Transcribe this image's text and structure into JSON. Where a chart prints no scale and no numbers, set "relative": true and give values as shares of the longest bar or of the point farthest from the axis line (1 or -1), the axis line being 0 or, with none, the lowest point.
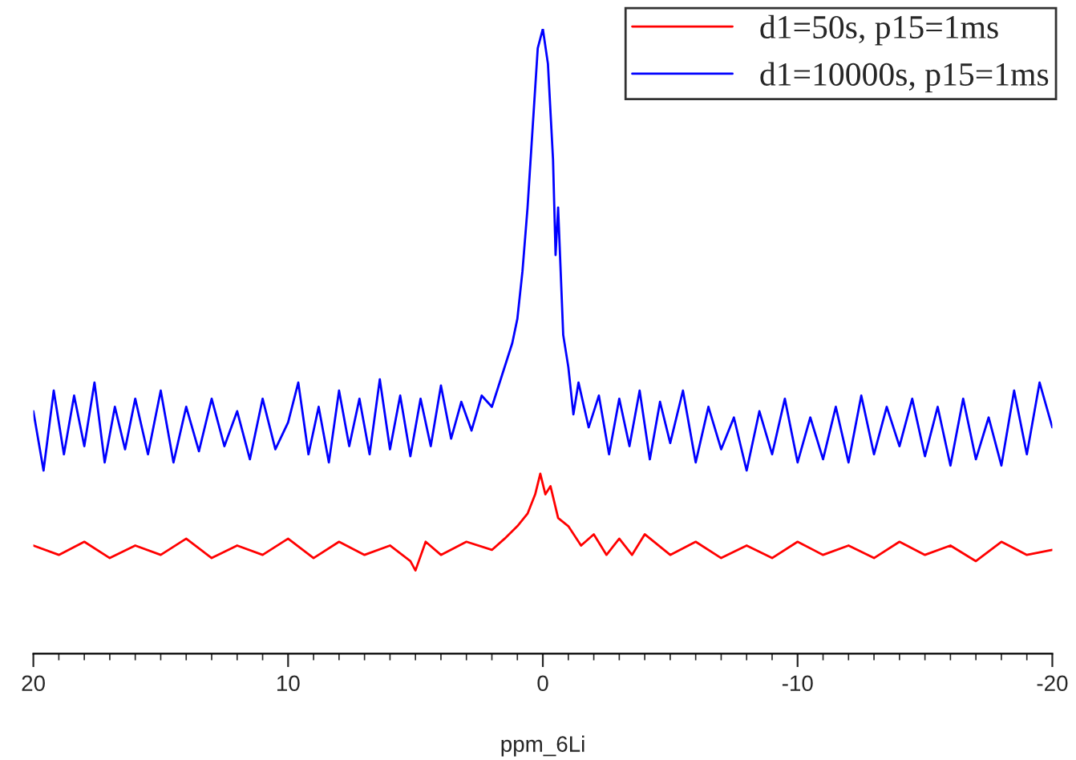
{
  "chart_data": {
    "type": "line",
    "xlabel": "ppm_6Li",
    "relative": true,
    "xlim": [
      20,
      -20
    ],
    "xticks": [
      20,
      10,
      0,
      -10,
      -20
    ],
    "legend": "top right",
    "grid": false,
    "series": [
      {
        "name": "d1=50s, p15=1ms",
        "color": "#ff0000",
        "x": [
          20,
          19,
          18,
          17,
          16,
          15,
          14,
          13,
          12,
          11,
          10,
          9,
          8,
          7,
          6,
          5.2,
          5,
          4.6,
          4,
          3,
          2,
          1.5,
          1,
          0.6,
          0.3,
          0.1,
          -0.1,
          -0.3,
          -0.6,
          -1,
          -1.5,
          -2,
          -2.5,
          -3,
          -3.5,
          -4,
          -5,
          -6,
          -7,
          -8,
          -9,
          -10,
          -11,
          -12,
          -13,
          -14,
          -15,
          -16,
          -17,
          -18,
          -19,
          -20
        ],
        "values": [
          0.173,
          0.158,
          0.179,
          0.153,
          0.173,
          0.158,
          0.184,
          0.153,
          0.173,
          0.158,
          0.184,
          0.153,
          0.179,
          0.158,
          0.173,
          0.148,
          0.133,
          0.179,
          0.158,
          0.179,
          0.166,
          0.184,
          0.204,
          0.224,
          0.255,
          0.288,
          0.255,
          0.268,
          0.217,
          0.204,
          0.173,
          0.191,
          0.158,
          0.184,
          0.158,
          0.191,
          0.158,
          0.179,
          0.153,
          0.173,
          0.153,
          0.179,
          0.158,
          0.173,
          0.153,
          0.179,
          0.158,
          0.173,
          0.148,
          0.179,
          0.158,
          0.166
        ]
      },
      {
        "name": "d1=10000s, p15=1ms",
        "color": "#0000ff",
        "x": [
          20,
          19.6,
          19.2,
          18.8,
          18.4,
          18,
          17.6,
          17.2,
          16.8,
          16.4,
          16,
          15.5,
          15,
          14.5,
          14,
          13.5,
          13,
          12.5,
          12,
          11.5,
          11,
          10.5,
          10,
          9.6,
          9.2,
          8.8,
          8.4,
          8,
          7.6,
          7.2,
          6.8,
          6.4,
          6,
          5.6,
          5.2,
          4.8,
          4.4,
          4,
          3.6,
          3.2,
          2.8,
          2.4,
          2,
          1.6,
          1.2,
          1.0,
          0.8,
          0.6,
          0.4,
          0.2,
          0,
          -0.2,
          -0.4,
          -0.5,
          -0.6,
          -0.8,
          -1.0,
          -1.2,
          -1.4,
          -1.8,
          -2.2,
          -2.6,
          -3,
          -3.4,
          -3.8,
          -4.2,
          -4.6,
          -5,
          -5.5,
          -6,
          -6.5,
          -7,
          -7.5,
          -8,
          -8.5,
          -9,
          -9.5,
          -10,
          -10.5,
          -11,
          -11.5,
          -12,
          -12.5,
          -13,
          -13.5,
          -14,
          -14.5,
          -15,
          -15.5,
          -16,
          -16.5,
          -17,
          -17.5,
          -18,
          -18.5,
          -19,
          -19.5,
          -20
        ],
        "values": [
          0.388,
          0.293,
          0.421,
          0.319,
          0.413,
          0.332,
          0.434,
          0.306,
          0.395,
          0.327,
          0.408,
          0.319,
          0.421,
          0.306,
          0.395,
          0.324,
          0.408,
          0.332,
          0.388,
          0.311,
          0.408,
          0.327,
          0.37,
          0.434,
          0.319,
          0.395,
          0.306,
          0.421,
          0.332,
          0.408,
          0.319,
          0.439,
          0.327,
          0.413,
          0.316,
          0.408,
          0.332,
          0.429,
          0.344,
          0.403,
          0.357,
          0.413,
          0.395,
          0.446,
          0.497,
          0.536,
          0.612,
          0.714,
          0.842,
          0.969,
          1.0,
          0.944,
          0.791,
          0.638,
          0.714,
          0.51,
          0.459,
          0.383,
          0.434,
          0.362,
          0.413,
          0.319,
          0.408,
          0.332,
          0.421,
          0.311,
          0.403,
          0.337,
          0.421,
          0.306,
          0.395,
          0.327,
          0.378,
          0.293,
          0.388,
          0.319,
          0.408,
          0.306,
          0.378,
          0.311,
          0.395,
          0.306,
          0.413,
          0.319,
          0.395,
          0.332,
          0.408,
          0.316,
          0.395,
          0.301,
          0.408,
          0.311,
          0.378,
          0.301,
          0.421,
          0.319,
          0.434,
          0.362
        ]
      }
    ]
  }
}
